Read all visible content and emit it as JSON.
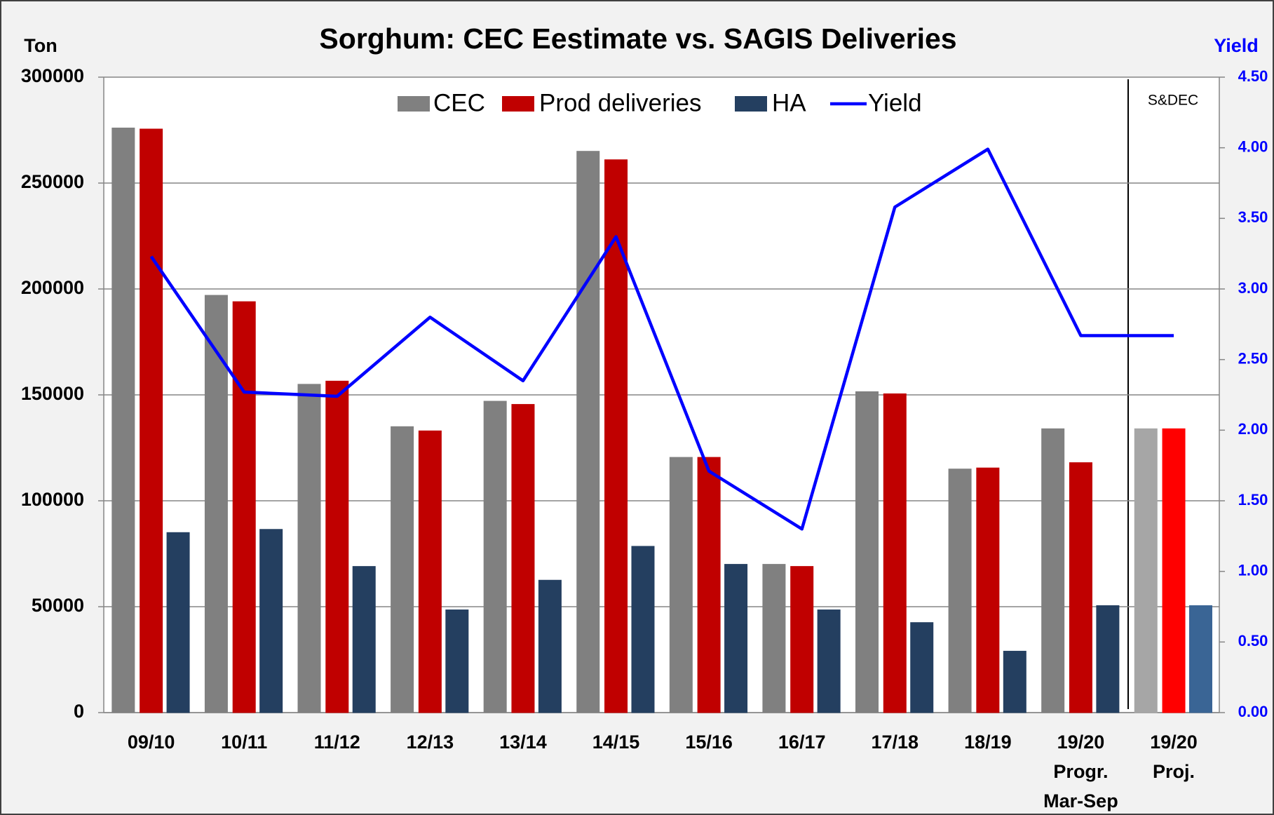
{
  "chart_data": {
    "type": "bar_line",
    "title": "Sorghum: CEC Eestimate vs. SAGIS Deliveries",
    "y_label": "Ton",
    "y2_label": "Yield",
    "annotation": "S&DEC",
    "categories": [
      "09/10",
      "10/11",
      "11/12",
      "12/13",
      "13/14",
      "14/15",
      "15/16",
      "16/17",
      "17/18",
      "18/19",
      "19/20\nProgr.\nMar-Sep",
      "19/20\nProj."
    ],
    "series": [
      {
        "name": "CEC",
        "type": "bar",
        "color": "#808080",
        "colors": [
          "#808080",
          "#808080",
          "#808080",
          "#808080",
          "#808080",
          "#808080",
          "#808080",
          "#808080",
          "#808080",
          "#808080",
          "#808080",
          "#a6a6a6"
        ],
        "values": [
          276000,
          197000,
          155000,
          135000,
          147000,
          265000,
          120500,
          70000,
          151500,
          115000,
          134000,
          134000
        ]
      },
      {
        "name": "Prod deliveries",
        "type": "bar",
        "color": "#c00000",
        "colors": [
          "#c00000",
          "#c00000",
          "#c00000",
          "#c00000",
          "#c00000",
          "#c00000",
          "#c00000",
          "#c00000",
          "#c00000",
          "#c00000",
          "#c00000",
          "#ff0000"
        ],
        "values": [
          275500,
          194000,
          156500,
          133000,
          145500,
          261000,
          120500,
          69000,
          150500,
          115500,
          118000,
          134000
        ]
      },
      {
        "name": "HA",
        "type": "bar",
        "color": "#243f60",
        "colors": [
          "#243f60",
          "#243f60",
          "#243f60",
          "#243f60",
          "#243f60",
          "#243f60",
          "#243f60",
          "#243f60",
          "#243f60",
          "#243f60",
          "#243f60",
          "#3a6595"
        ],
        "values": [
          85000,
          86500,
          69000,
          48500,
          62500,
          78500,
          70000,
          48500,
          42500,
          29000,
          50500,
          50500
        ]
      },
      {
        "name": "Yield",
        "type": "line",
        "axis": "y2",
        "color": "#0000ff",
        "values": [
          3.23,
          2.27,
          2.24,
          2.8,
          2.35,
          3.37,
          1.71,
          1.3,
          3.58,
          3.99,
          2.67,
          2.67
        ]
      }
    ],
    "ylim": [
      0,
      300000
    ],
    "yticks": [
      0,
      50000,
      100000,
      150000,
      200000,
      250000,
      300000
    ],
    "y2lim": [
      0,
      4.5
    ],
    "y2ticks": [
      {
        "value": 0,
        "label": "0.00"
      },
      {
        "value": 0.5,
        "label": "0.50"
      },
      {
        "value": 1,
        "label": "1.00"
      },
      {
        "value": 1.5,
        "label": "1.50"
      },
      {
        "value": 2,
        "label": "2.00"
      },
      {
        "value": 2.5,
        "label": "2.50"
      },
      {
        "value": 3,
        "label": "3.00"
      },
      {
        "value": 3.5,
        "label": "3.50"
      },
      {
        "value": 4,
        "label": "4.00"
      },
      {
        "value": 4.5,
        "label": "4.50"
      }
    ],
    "grid": true,
    "legend": "top"
  }
}
